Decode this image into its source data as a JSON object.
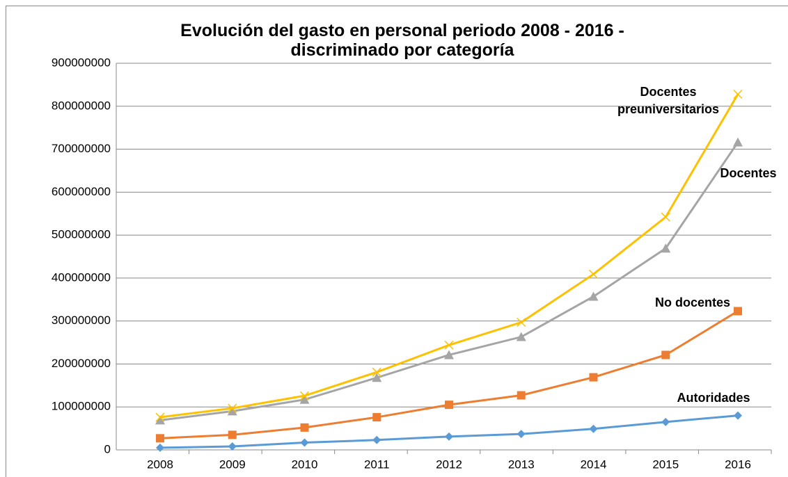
{
  "chart_data": {
    "type": "line",
    "title": "Evolución del gasto en personal periodo 2008 - 2016 - discriminado por categoría",
    "categories": [
      "2008",
      "2009",
      "2010",
      "2011",
      "2012",
      "2013",
      "2014",
      "2015",
      "2016"
    ],
    "series": [
      {
        "name": "Autoridades",
        "color": "#5b9bd5",
        "marker": "diamond",
        "values": [
          5000000,
          8000000,
          17000000,
          23000000,
          31000000,
          37000000,
          49000000,
          65000000,
          80000000
        ]
      },
      {
        "name": "No docentes",
        "color": "#ed7d31",
        "marker": "square",
        "values": [
          27000000,
          35000000,
          52000000,
          76000000,
          105000000,
          127000000,
          169000000,
          221000000,
          323000000
        ]
      },
      {
        "name": "Docentes",
        "color": "#a5a5a5",
        "marker": "triangle",
        "values": [
          69000000,
          90000000,
          117000000,
          168000000,
          221000000,
          263000000,
          357000000,
          469000000,
          716000000
        ]
      },
      {
        "name": "Docentes preuniversitarios",
        "color": "#ffc000",
        "marker": "x",
        "values": [
          76000000,
          97000000,
          126000000,
          181000000,
          244000000,
          297000000,
          409000000,
          542000000,
          828000000
        ]
      }
    ],
    "ylim": [
      0,
      900000000
    ],
    "yticks": [
      0,
      100000000,
      200000000,
      300000000,
      400000000,
      500000000,
      600000000,
      700000000,
      800000000,
      900000000
    ],
    "grid": true
  }
}
